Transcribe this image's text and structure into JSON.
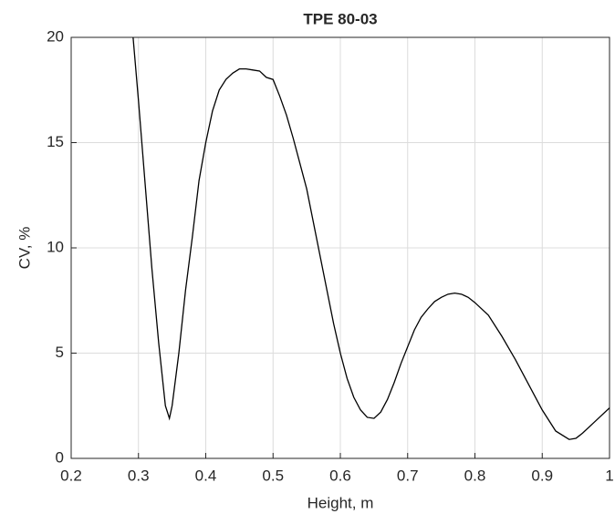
{
  "chart_data": {
    "type": "line",
    "title": "TPE 80-03",
    "xlabel": "Height, m",
    "ylabel": "CV, %",
    "x": [
      0.292,
      0.3,
      0.31,
      0.32,
      0.33,
      0.34,
      0.346,
      0.35,
      0.36,
      0.37,
      0.38,
      0.39,
      0.4,
      0.41,
      0.42,
      0.43,
      0.44,
      0.45,
      0.46,
      0.47,
      0.48,
      0.49,
      0.5,
      0.51,
      0.52,
      0.53,
      0.54,
      0.55,
      0.56,
      0.57,
      0.58,
      0.59,
      0.6,
      0.61,
      0.62,
      0.63,
      0.64,
      0.65,
      0.66,
      0.67,
      0.68,
      0.69,
      0.7,
      0.71,
      0.72,
      0.73,
      0.74,
      0.75,
      0.76,
      0.77,
      0.78,
      0.79,
      0.8,
      0.82,
      0.84,
      0.86,
      0.88,
      0.9,
      0.92,
      0.94,
      0.95,
      0.96,
      0.98,
      1.0
    ],
    "values": [
      20,
      17,
      13,
      9,
      5.5,
      2.5,
      1.9,
      2.5,
      5,
      8,
      10.5,
      13.2,
      15,
      16.5,
      17.5,
      18,
      18.3,
      18.5,
      18.5,
      18.45,
      18.4,
      18.1,
      18.0,
      17.2,
      16.3,
      15.2,
      14,
      12.8,
      11.2,
      9.6,
      8,
      6.4,
      5,
      3.8,
      2.9,
      2.3,
      1.95,
      1.9,
      2.2,
      2.8,
      3.6,
      4.5,
      5.3,
      6.1,
      6.7,
      7.1,
      7.45,
      7.65,
      7.8,
      7.85,
      7.8,
      7.65,
      7.4,
      6.8,
      5.8,
      4.7,
      3.5,
      2.3,
      1.3,
      0.9,
      0.95,
      1.2,
      1.8,
      2.4
    ],
    "color": "#000000",
    "xlim": [
      0.2,
      1
    ],
    "xticks": [
      0.2,
      0.3,
      0.4,
      0.5,
      0.6,
      0.7,
      0.8,
      0.9,
      1
    ],
    "ylim": [
      0,
      20
    ],
    "yticks": [
      0,
      5,
      10,
      15,
      20
    ],
    "grid": true
  }
}
